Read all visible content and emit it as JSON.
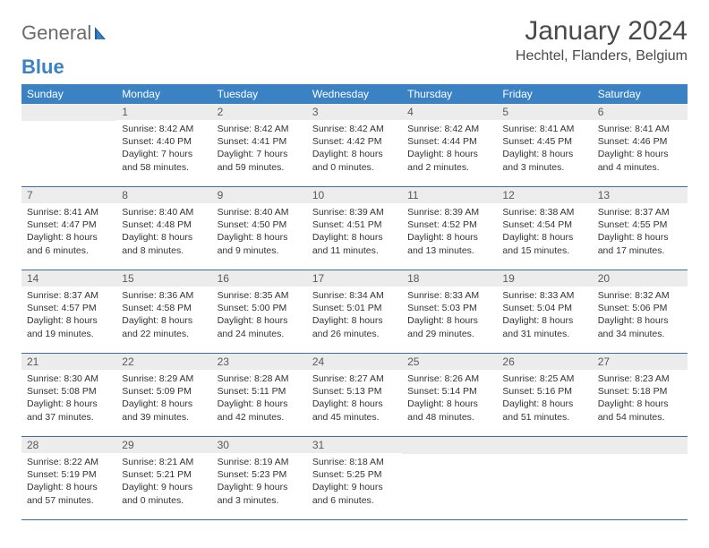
{
  "logo": {
    "word1": "General",
    "word2": "Blue"
  },
  "title": "January 2024",
  "location": "Hechtel, Flanders, Belgium",
  "colors": {
    "header_bg": "#3b82c4",
    "header_text": "#ffffff",
    "daynum_bg": "#ececec",
    "daynum_text": "#5a5a5a",
    "body_text": "#333333",
    "rule": "#3b6fa0",
    "logo_gray": "#6b6b6b",
    "logo_blue": "#3b82c4"
  },
  "weekdays": [
    "Sunday",
    "Monday",
    "Tuesday",
    "Wednesday",
    "Thursday",
    "Friday",
    "Saturday"
  ],
  "weeks": [
    [
      null,
      {
        "n": "1",
        "sr": "Sunrise: 8:42 AM",
        "ss": "Sunset: 4:40 PM",
        "d1": "Daylight: 7 hours",
        "d2": "and 58 minutes."
      },
      {
        "n": "2",
        "sr": "Sunrise: 8:42 AM",
        "ss": "Sunset: 4:41 PM",
        "d1": "Daylight: 7 hours",
        "d2": "and 59 minutes."
      },
      {
        "n": "3",
        "sr": "Sunrise: 8:42 AM",
        "ss": "Sunset: 4:42 PM",
        "d1": "Daylight: 8 hours",
        "d2": "and 0 minutes."
      },
      {
        "n": "4",
        "sr": "Sunrise: 8:42 AM",
        "ss": "Sunset: 4:44 PM",
        "d1": "Daylight: 8 hours",
        "d2": "and 2 minutes."
      },
      {
        "n": "5",
        "sr": "Sunrise: 8:41 AM",
        "ss": "Sunset: 4:45 PM",
        "d1": "Daylight: 8 hours",
        "d2": "and 3 minutes."
      },
      {
        "n": "6",
        "sr": "Sunrise: 8:41 AM",
        "ss": "Sunset: 4:46 PM",
        "d1": "Daylight: 8 hours",
        "d2": "and 4 minutes."
      }
    ],
    [
      {
        "n": "7",
        "sr": "Sunrise: 8:41 AM",
        "ss": "Sunset: 4:47 PM",
        "d1": "Daylight: 8 hours",
        "d2": "and 6 minutes."
      },
      {
        "n": "8",
        "sr": "Sunrise: 8:40 AM",
        "ss": "Sunset: 4:48 PM",
        "d1": "Daylight: 8 hours",
        "d2": "and 8 minutes."
      },
      {
        "n": "9",
        "sr": "Sunrise: 8:40 AM",
        "ss": "Sunset: 4:50 PM",
        "d1": "Daylight: 8 hours",
        "d2": "and 9 minutes."
      },
      {
        "n": "10",
        "sr": "Sunrise: 8:39 AM",
        "ss": "Sunset: 4:51 PM",
        "d1": "Daylight: 8 hours",
        "d2": "and 11 minutes."
      },
      {
        "n": "11",
        "sr": "Sunrise: 8:39 AM",
        "ss": "Sunset: 4:52 PM",
        "d1": "Daylight: 8 hours",
        "d2": "and 13 minutes."
      },
      {
        "n": "12",
        "sr": "Sunrise: 8:38 AM",
        "ss": "Sunset: 4:54 PM",
        "d1": "Daylight: 8 hours",
        "d2": "and 15 minutes."
      },
      {
        "n": "13",
        "sr": "Sunrise: 8:37 AM",
        "ss": "Sunset: 4:55 PM",
        "d1": "Daylight: 8 hours",
        "d2": "and 17 minutes."
      }
    ],
    [
      {
        "n": "14",
        "sr": "Sunrise: 8:37 AM",
        "ss": "Sunset: 4:57 PM",
        "d1": "Daylight: 8 hours",
        "d2": "and 19 minutes."
      },
      {
        "n": "15",
        "sr": "Sunrise: 8:36 AM",
        "ss": "Sunset: 4:58 PM",
        "d1": "Daylight: 8 hours",
        "d2": "and 22 minutes."
      },
      {
        "n": "16",
        "sr": "Sunrise: 8:35 AM",
        "ss": "Sunset: 5:00 PM",
        "d1": "Daylight: 8 hours",
        "d2": "and 24 minutes."
      },
      {
        "n": "17",
        "sr": "Sunrise: 8:34 AM",
        "ss": "Sunset: 5:01 PM",
        "d1": "Daylight: 8 hours",
        "d2": "and 26 minutes."
      },
      {
        "n": "18",
        "sr": "Sunrise: 8:33 AM",
        "ss": "Sunset: 5:03 PM",
        "d1": "Daylight: 8 hours",
        "d2": "and 29 minutes."
      },
      {
        "n": "19",
        "sr": "Sunrise: 8:33 AM",
        "ss": "Sunset: 5:04 PM",
        "d1": "Daylight: 8 hours",
        "d2": "and 31 minutes."
      },
      {
        "n": "20",
        "sr": "Sunrise: 8:32 AM",
        "ss": "Sunset: 5:06 PM",
        "d1": "Daylight: 8 hours",
        "d2": "and 34 minutes."
      }
    ],
    [
      {
        "n": "21",
        "sr": "Sunrise: 8:30 AM",
        "ss": "Sunset: 5:08 PM",
        "d1": "Daylight: 8 hours",
        "d2": "and 37 minutes."
      },
      {
        "n": "22",
        "sr": "Sunrise: 8:29 AM",
        "ss": "Sunset: 5:09 PM",
        "d1": "Daylight: 8 hours",
        "d2": "and 39 minutes."
      },
      {
        "n": "23",
        "sr": "Sunrise: 8:28 AM",
        "ss": "Sunset: 5:11 PM",
        "d1": "Daylight: 8 hours",
        "d2": "and 42 minutes."
      },
      {
        "n": "24",
        "sr": "Sunrise: 8:27 AM",
        "ss": "Sunset: 5:13 PM",
        "d1": "Daylight: 8 hours",
        "d2": "and 45 minutes."
      },
      {
        "n": "25",
        "sr": "Sunrise: 8:26 AM",
        "ss": "Sunset: 5:14 PM",
        "d1": "Daylight: 8 hours",
        "d2": "and 48 minutes."
      },
      {
        "n": "26",
        "sr": "Sunrise: 8:25 AM",
        "ss": "Sunset: 5:16 PM",
        "d1": "Daylight: 8 hours",
        "d2": "and 51 minutes."
      },
      {
        "n": "27",
        "sr": "Sunrise: 8:23 AM",
        "ss": "Sunset: 5:18 PM",
        "d1": "Daylight: 8 hours",
        "d2": "and 54 minutes."
      }
    ],
    [
      {
        "n": "28",
        "sr": "Sunrise: 8:22 AM",
        "ss": "Sunset: 5:19 PM",
        "d1": "Daylight: 8 hours",
        "d2": "and 57 minutes."
      },
      {
        "n": "29",
        "sr": "Sunrise: 8:21 AM",
        "ss": "Sunset: 5:21 PM",
        "d1": "Daylight: 9 hours",
        "d2": "and 0 minutes."
      },
      {
        "n": "30",
        "sr": "Sunrise: 8:19 AM",
        "ss": "Sunset: 5:23 PM",
        "d1": "Daylight: 9 hours",
        "d2": "and 3 minutes."
      },
      {
        "n": "31",
        "sr": "Sunrise: 8:18 AM",
        "ss": "Sunset: 5:25 PM",
        "d1": "Daylight: 9 hours",
        "d2": "and 6 minutes."
      },
      null,
      null,
      null
    ]
  ]
}
